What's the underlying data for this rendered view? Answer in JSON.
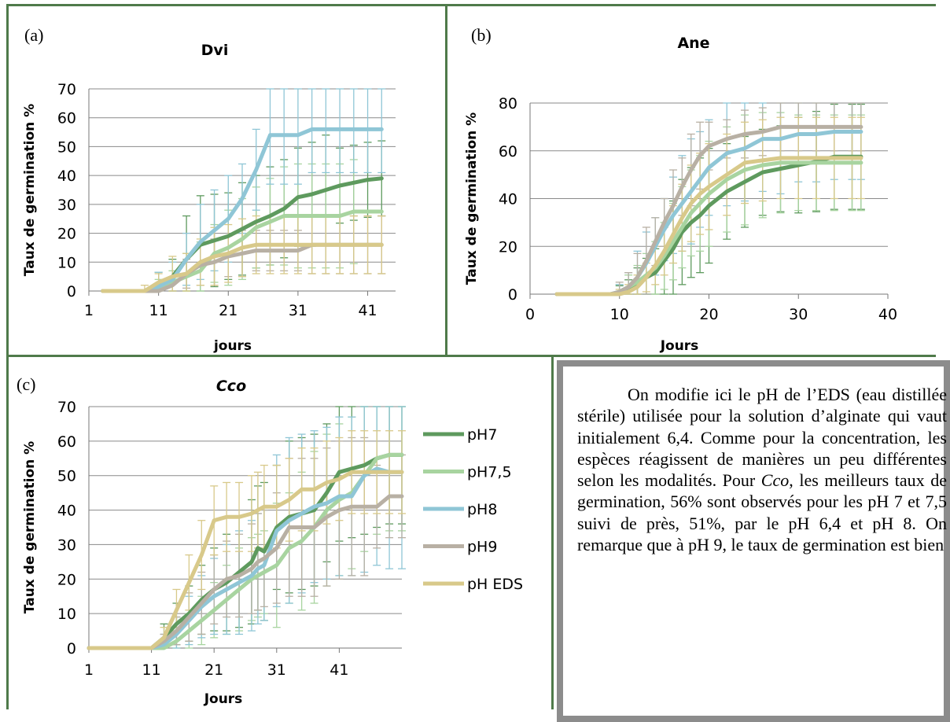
{
  "series_names": [
    "pH7",
    "pH7,5",
    "pH8",
    "pH9",
    "pH EDS"
  ],
  "colors": {
    "pH7": "#5e9a5e",
    "pH7,5": "#a8d4a0",
    "pH8": "#8fc6d6",
    "pH9": "#b8b0a4",
    "pH EDS": "#d8c98a",
    "frame": "#4f7a4a",
    "textbox_border": "#8c8c8c",
    "grid": "#8a8a8a"
  },
  "panels": {
    "a": {
      "label": "(a)"
    },
    "b": {
      "label": "(b)"
    },
    "c": {
      "label": "(c)"
    }
  },
  "chart_data": [
    {
      "type": "line",
      "panel": "a",
      "title": "Dvi",
      "title_italic": false,
      "xlabel": "jours",
      "ylabel": "Taux de germination %",
      "xlim": [
        1,
        45
      ],
      "ylim": [
        0,
        70
      ],
      "xticks": [
        1,
        11,
        21,
        31,
        41
      ],
      "yticks": [
        0,
        10,
        20,
        30,
        40,
        50,
        60,
        70
      ],
      "grid": true,
      "x": [
        3,
        5,
        7,
        9,
        11,
        13,
        15,
        17,
        19,
        21,
        23,
        25,
        27,
        29,
        31,
        33,
        35,
        37,
        39,
        41,
        43
      ],
      "series": [
        {
          "name": "pH7",
          "values": [
            0,
            0,
            0,
            0,
            2.5,
            5,
            11,
            16,
            17.5,
            19,
            21.5,
            24,
            26,
            28.5,
            32.5,
            33.5,
            35,
            36.5,
            37.5,
            38.5,
            39
          ],
          "err": [
            0,
            0,
            0,
            0,
            4,
            6,
            15,
            17,
            16,
            15,
            16,
            16,
            17,
            17,
            17,
            18,
            19,
            13,
            13,
            13,
            13
          ]
        },
        {
          "name": "pH7,5",
          "values": [
            0,
            0,
            0,
            0,
            1,
            3,
            5,
            7,
            13,
            15,
            18,
            22,
            24,
            26,
            26,
            26,
            26,
            26,
            27.5,
            27.5,
            27.5
          ],
          "err": [
            0,
            0,
            0,
            0,
            3,
            4,
            8,
            10,
            10,
            13,
            14,
            14,
            15,
            17,
            18,
            18,
            18,
            18,
            18,
            0,
            0
          ]
        },
        {
          "name": "pH8",
          "values": [
            0,
            0,
            0,
            0,
            1.5,
            4,
            11,
            17,
            21,
            25,
            32,
            42,
            54,
            54,
            54,
            56,
            56,
            56,
            56,
            56,
            56
          ],
          "err": [
            0,
            0,
            0,
            0,
            5,
            6,
            9,
            13,
            14,
            15,
            12,
            14,
            17,
            17,
            17,
            15,
            15,
            15,
            15,
            15,
            15
          ]
        },
        {
          "name": "pH9",
          "values": [
            0,
            0,
            0,
            0,
            0,
            2,
            6,
            9,
            10,
            12,
            13,
            14,
            14,
            14,
            14,
            16,
            16,
            16,
            16,
            16,
            16
          ],
          "err": [
            0,
            0,
            0,
            0,
            2,
            3,
            5,
            7,
            8,
            7,
            8,
            7,
            7,
            7,
            7,
            10,
            10,
            10,
            10,
            10,
            10
          ]
        },
        {
          "name": "pH EDS",
          "values": [
            0,
            0,
            0,
            0,
            3,
            5,
            6,
            10,
            12,
            13,
            15,
            16,
            16,
            16,
            16,
            16,
            16,
            16,
            16,
            16,
            16
          ],
          "err": [
            0,
            0,
            0,
            2,
            3,
            7,
            7,
            8,
            10,
            10,
            10,
            10,
            10,
            10,
            10,
            10,
            10,
            10,
            10,
            10,
            10
          ]
        }
      ]
    },
    {
      "type": "line",
      "panel": "b",
      "title": "Ane",
      "title_italic": false,
      "xlabel": "Jours",
      "ylabel": "Taux de germination %",
      "xlim": [
        0,
        40
      ],
      "ylim": [
        0,
        80
      ],
      "xticks": [
        0,
        10,
        20,
        30,
        40
      ],
      "yticks": [
        0,
        20,
        40,
        60,
        80
      ],
      "grid": true,
      "x": [
        3,
        5,
        7,
        9,
        10,
        11,
        12,
        13,
        14,
        15,
        16,
        17,
        18,
        19,
        20,
        22,
        24,
        26,
        28,
        30,
        32,
        34,
        36,
        37
      ],
      "series": [
        {
          "name": "pH7",
          "values": [
            0,
            0,
            0,
            0,
            0.5,
            2,
            5,
            7,
            9,
            14,
            19,
            26,
            30,
            33,
            37,
            43,
            47,
            51,
            52.5,
            54,
            55.5,
            57.5,
            57.5,
            57.5
          ],
          "err": [
            0,
            0,
            0,
            0,
            3,
            4,
            6,
            8,
            10,
            14,
            20,
            22,
            23,
            24,
            24,
            20,
            19,
            18,
            18,
            20,
            21,
            22,
            22,
            22
          ]
        },
        {
          "name": "pH7,5",
          "values": [
            0,
            0,
            0,
            0,
            1,
            3,
            5,
            8,
            11,
            16,
            22,
            28,
            34,
            38,
            42,
            48,
            52,
            54,
            55,
            55,
            55,
            55,
            55,
            55
          ],
          "err": [
            0,
            0,
            0,
            0,
            3,
            5,
            7,
            9,
            11,
            14,
            16,
            17,
            18,
            20,
            22,
            22,
            23,
            22,
            21,
            20,
            20,
            20,
            20,
            20
          ]
        },
        {
          "name": "pH8",
          "values": [
            0,
            0,
            0,
            0,
            1,
            3,
            7,
            13,
            20,
            27,
            33,
            38,
            43,
            48,
            53,
            59,
            61,
            65,
            65,
            67,
            67,
            68,
            68,
            68
          ],
          "err": [
            0,
            0,
            0,
            0,
            3,
            6,
            11,
            13,
            12,
            13,
            16,
            20,
            22,
            20,
            20,
            22,
            22,
            22,
            23,
            20,
            20,
            20,
            20,
            20
          ]
        },
        {
          "name": "pH9",
          "values": [
            0,
            0,
            0,
            0,
            1,
            3,
            7,
            14,
            22,
            30,
            37,
            45,
            52,
            58,
            62,
            65,
            67,
            68,
            70,
            70,
            70,
            70,
            70,
            70
          ],
          "err": [
            0,
            0,
            0,
            0,
            4,
            6,
            10,
            14,
            10,
            10,
            15,
            12,
            15,
            14,
            10,
            8,
            10,
            10,
            10,
            10,
            10,
            10,
            10,
            10
          ]
        },
        {
          "name": "pH EDS",
          "values": [
            0,
            0,
            0,
            0,
            0,
            1,
            3,
            7,
            12,
            18,
            25,
            32,
            38,
            42,
            45,
            50,
            55,
            56,
            57,
            57,
            57,
            57,
            57,
            57
          ],
          "err": [
            0,
            0,
            0,
            0,
            2,
            3,
            5,
            6,
            8,
            10,
            12,
            14,
            16,
            17,
            18,
            17,
            17,
            17,
            17,
            17,
            17,
            17,
            17,
            17
          ]
        }
      ]
    },
    {
      "type": "line",
      "panel": "c",
      "title": "Cco",
      "title_italic": true,
      "xlabel": "Jours",
      "ylabel": "Taux de germination %",
      "xlim": [
        1,
        51
      ],
      "ylim": [
        0,
        70
      ],
      "xticks": [
        1,
        11,
        21,
        31,
        41
      ],
      "yticks": [
        0,
        10,
        20,
        30,
        40,
        50,
        60,
        70
      ],
      "grid": true,
      "legend": "right",
      "x": [
        1,
        3,
        5,
        7,
        9,
        11,
        13,
        15,
        17,
        19,
        21,
        23,
        25,
        27,
        28,
        29,
        31,
        33,
        35,
        37,
        39,
        41,
        43,
        45,
        47,
        49,
        51
      ],
      "series": [
        {
          "name": "pH7",
          "values": [
            0,
            0,
            0,
            0,
            0,
            0,
            3,
            7,
            10,
            14,
            17,
            19,
            22,
            25,
            29,
            28,
            35,
            38,
            39,
            40,
            45,
            51,
            52,
            53,
            55,
            56,
            56
          ],
          "err": [
            0,
            0,
            0,
            0,
            0,
            0,
            4,
            6,
            8,
            10,
            12,
            14,
            16,
            18,
            18,
            20,
            18,
            22,
            22,
            22,
            20,
            20,
            20,
            20,
            20,
            20,
            20
          ]
        },
        {
          "name": "pH7,5",
          "values": [
            0,
            0,
            0,
            0,
            0,
            0,
            0,
            2,
            5,
            8,
            11,
            14,
            17,
            20,
            21,
            22,
            24,
            29,
            31,
            35,
            40,
            43,
            45,
            50,
            55,
            56,
            56
          ],
          "err": [
            0,
            0,
            0,
            0,
            0,
            0,
            2,
            3,
            5,
            7,
            8,
            10,
            12,
            12,
            12,
            12,
            18,
            16,
            20,
            22,
            22,
            22,
            22,
            22,
            22,
            22,
            22
          ]
        },
        {
          "name": "pH8",
          "values": [
            0,
            0,
            0,
            0,
            0,
            0,
            1,
            4,
            8,
            12,
            15,
            17,
            19,
            21,
            23,
            24,
            34,
            37,
            39,
            41,
            42,
            44,
            44,
            50,
            52,
            51,
            51
          ],
          "err": [
            0,
            0,
            0,
            0,
            0,
            0,
            3,
            5,
            7,
            9,
            11,
            13,
            15,
            16,
            16,
            16,
            22,
            24,
            23,
            22,
            22,
            23,
            23,
            28,
            28,
            28,
            28
          ]
        },
        {
          "name": "pH9",
          "values": [
            0,
            0,
            0,
            0,
            0,
            0,
            2,
            5,
            9,
            13,
            17,
            20,
            21,
            23,
            25,
            26,
            29,
            35,
            35,
            35,
            38,
            40,
            41,
            41,
            41,
            44,
            44
          ],
          "err": [
            0,
            0,
            0,
            0,
            0,
            0,
            2,
            4,
            7,
            9,
            10,
            11,
            12,
            13,
            14,
            14,
            16,
            20,
            20,
            20,
            20,
            20,
            20,
            20,
            12,
            12,
            12
          ]
        },
        {
          "name": "pH EDS",
          "values": [
            0,
            0,
            0,
            0,
            0,
            0,
            3,
            11,
            19,
            27,
            37,
            38,
            38,
            39,
            40,
            41,
            41,
            43,
            46,
            46,
            48,
            49,
            51,
            51,
            51,
            51,
            51
          ],
          "err": [
            0,
            0,
            0,
            0,
            0,
            0,
            3,
            6,
            8,
            10,
            10,
            10,
            10,
            11,
            11,
            12,
            12,
            12,
            12,
            12,
            12,
            12,
            12,
            12,
            12,
            12,
            12
          ]
        }
      ]
    }
  ],
  "paragraph": {
    "part1": "On modifie ici le pH de l’EDS (eau distillée stérile) utilisée pour la solution d’alginate qui vaut initialement 6,4. Comme pour la concentration, les espèces réagissent de manières un peu différentes selon les modalités. Pour ",
    "italic1": "Cco",
    "part2": ", les meilleurs taux de germination, 56% sont observés pour les pH 7 et 7,5 suivi de près, 51%, par le pH 6,4 et pH 8. On remarque que à pH 9, le taux de germination est bien"
  }
}
